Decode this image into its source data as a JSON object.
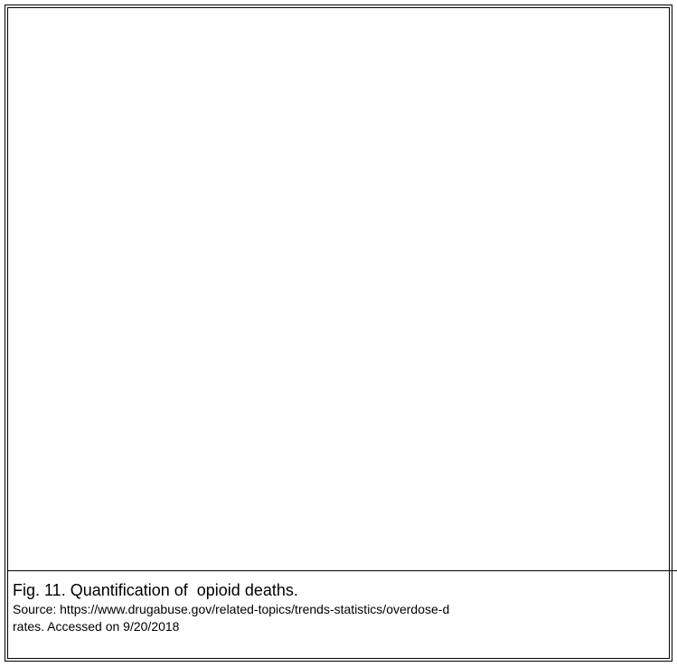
{
  "caption": {
    "title": "Fig. 11. Quantification of  opioid deaths.",
    "source": "Source: https://www.drugabuse.gov/related-topics/trends-statistics/overdose-d",
    "accessed": "rates. Accessed on 9/20/2018"
  }
}
